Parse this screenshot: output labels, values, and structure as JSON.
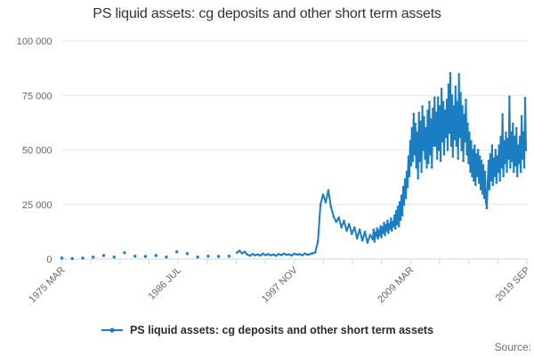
{
  "title": "PS liquid assets: cg deposits and other short term assets",
  "legend": {
    "label": "PS liquid assets: cg deposits and other short term assets"
  },
  "source_label": "Source:",
  "colors": {
    "series": "#1b7ec2",
    "title": "#333333",
    "axis_label": "#666666",
    "gridline": "#e6e6e6",
    "axis_line": "#ccd6eb",
    "legend_text": "#2b2b2b",
    "source": "#6b6b6b"
  },
  "chart_data": {
    "type": "line",
    "title": "PS liquid assets: cg deposits and other short term assets",
    "xlabel": "",
    "ylabel": "",
    "grid": "horizontal",
    "legend_position": "bottom-center",
    "x_axis": {
      "min": 1975.25,
      "max": 2019.75,
      "tick_count": 17,
      "labels": [
        {
          "index": 0,
          "text": "1975 MAR"
        },
        {
          "index": 4,
          "text": "1986 JUL"
        },
        {
          "index": 8,
          "text": "1997 NOV"
        },
        {
          "index": 12,
          "text": "2009 MAR"
        },
        {
          "index": 16,
          "text": "2019 SEP"
        }
      ]
    },
    "y_axis": {
      "min": 0,
      "max": 100000,
      "ticks": [
        {
          "value": 0,
          "label": "0"
        },
        {
          "value": 25000,
          "label": "25 000"
        },
        {
          "value": 50000,
          "label": "50 000"
        },
        {
          "value": 75000,
          "label": "75 000"
        },
        {
          "value": 100000,
          "label": "100 000"
        }
      ]
    },
    "series": [
      {
        "name": "PS liquid assets: cg deposits and other short term assets",
        "segments": [
          {
            "period": "annual 1975-1991 (isolated points)",
            "start": 1975.25,
            "step_months": 12,
            "connect": false,
            "values": [
              400,
              150,
              400,
              800,
              1600,
              900,
              2900,
              1300,
              1200,
              1600,
              900,
              3300,
              2500,
              900,
              1300,
              1200,
              1300
            ]
          },
          {
            "period": "quarterly 1992-1999 Q2",
            "start": 1992.0,
            "step_months": 3,
            "connect": true,
            "values": [
              2900,
              3800,
              2600,
              3300,
              2000,
              1500,
              2300,
              1700,
              2100,
              1600,
              2400,
              1800,
              2200,
              1700,
              2000,
              1500,
              2300,
              1800,
              2500,
              1900,
              2100,
              1600,
              2400,
              2000,
              2200,
              1700,
              2500,
              1900,
              2300,
              2600,
              3000
            ]
          },
          {
            "period": "quarterly 1999 Q3 - 2004 Q4 (spike and decline)",
            "start": 1999.75,
            "step_months": 3,
            "connect": true,
            "values": [
              8000,
              25000,
              29500,
              26000,
              31500,
              24000,
              19500,
              17000,
              19000,
              14500,
              17500,
              13000,
              16000,
              11500,
              14500,
              9500,
              13500,
              8500,
              12500,
              7500,
              11000
            ]
          },
          {
            "period": "monthly 2005 - 2019 SEP",
            "start": 2005.0,
            "step_months": 1,
            "connect": true,
            "values": [
              9000,
              13500,
              8000,
              12000,
              10500,
              14000,
              9500,
              13000,
              11000,
              15000,
              10000,
              14500,
              12000,
              16500,
              11000,
              15500,
              13000,
              17500,
              12000,
              16000,
              14000,
              18500,
              13000,
              17000,
              15000,
              20000,
              14000,
              22000,
              16000,
              24000,
              15000,
              26000,
              18000,
              29000,
              20000,
              33000,
              25000,
              36500,
              28000,
              40000,
              33000,
              47000,
              38000,
              54000,
              43000,
              60000,
              45000,
              66500,
              48000,
              62000,
              42000,
              58000,
              37000,
              67000,
              45000,
              63000,
              40000,
              70000,
              50000,
              65000,
              46000,
              60000,
              42000,
              68000,
              44000,
              72000,
              48000,
              64000,
              42000,
              69000,
              52000,
              74000,
              52000,
              67000,
              46000,
              74000,
              50000,
              70000,
              45000,
              78000,
              54000,
              72000,
              48000,
              68000,
              56000,
              73000,
              50000,
              80000,
              58000,
              85200,
              52000,
              75000,
              47000,
              70000,
              55000,
              79000,
              52000,
              72000,
              46000,
              84700,
              56000,
              76000,
              50000,
              70000,
              45000,
              66000,
              54000,
              73000,
              48000,
              62000,
              44000,
              58000,
              40000,
              54000,
              38000,
              50000,
              36000,
              52000,
              34000,
              48000,
              38000,
              50000,
              35000,
              47000,
              32000,
              45000,
              30000,
              43000,
              28000,
              40000,
              26000,
              23400,
              35000,
              45000,
              32000,
              48000,
              36000,
              52000,
              34000,
              46000,
              38000,
              50000,
              35000,
              47000,
              40000,
              52000,
              36000,
              56000,
              42000,
              66300,
              38000,
              54000,
              44000,
              58000,
              40000,
              55000,
              46000,
              74500,
              42000,
              58000,
              45000,
              62000,
              40000,
              56000,
              43000,
              60000,
              38000,
              52000,
              44000,
              56000,
              40000,
              65500,
              46000,
              58000,
              42000,
              73800,
              50000
            ]
          }
        ]
      }
    ]
  }
}
